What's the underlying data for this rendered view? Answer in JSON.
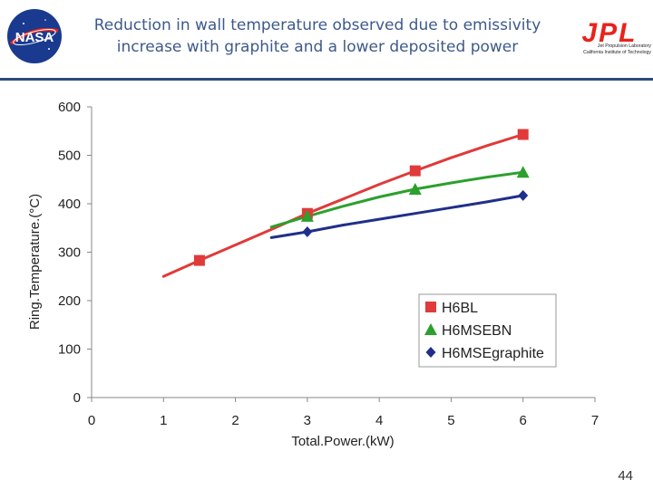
{
  "slide": {
    "title_line1": "Reduction in wall temperature observed due to emissivity",
    "title_line2": "increase with graphite and a lower deposited power",
    "nasa_logo_text": "NASA",
    "jpl_logo_text": "JPL",
    "jpl_line1": "Jet Propulsion Laboratory",
    "jpl_line2": "California Institute of Technology",
    "page_number": "44"
  },
  "colors": {
    "title": "#3d5a8a",
    "rule": "#2e4b7a",
    "jpl_red": "#e8231b",
    "nasa_blue": "#1a3a8f"
  },
  "chart_data": {
    "type": "line",
    "xlabel": "Total.Power.(kW)",
    "ylabel": "Ring.Temperature.(°C)",
    "xlim": [
      0,
      7
    ],
    "ylim": [
      0,
      600
    ],
    "xticks": [
      0,
      1,
      2,
      3,
      4,
      5,
      6,
      7
    ],
    "yticks": [
      0,
      100,
      200,
      300,
      400,
      500,
      600
    ],
    "grid": false,
    "legend_position": "bottom-right",
    "series": [
      {
        "name": "H6BL",
        "color": "#e03a3a",
        "marker": "square",
        "line": [
          [
            1,
            250
          ],
          [
            1.5,
            283
          ],
          [
            2,
            315
          ],
          [
            2.5,
            347
          ],
          [
            3,
            380
          ],
          [
            3.5,
            410
          ],
          [
            4,
            440
          ],
          [
            4.5,
            468
          ],
          [
            5,
            495
          ],
          [
            5.5,
            520
          ],
          [
            6,
            543
          ]
        ],
        "markers": [
          [
            1.5,
            283
          ],
          [
            3,
            380
          ],
          [
            4.5,
            468
          ],
          [
            6,
            543
          ]
        ]
      },
      {
        "name": "H6MSEBN",
        "color": "#2ca02c",
        "marker": "triangle",
        "line": [
          [
            2.5,
            352
          ],
          [
            3,
            374
          ],
          [
            3.5,
            395
          ],
          [
            4,
            414
          ],
          [
            4.5,
            430
          ],
          [
            5,
            443
          ],
          [
            5.5,
            455
          ],
          [
            6,
            465
          ]
        ],
        "markers": [
          [
            3,
            374
          ],
          [
            4.5,
            430
          ],
          [
            6,
            465
          ]
        ]
      },
      {
        "name": "H6MSEgraphite",
        "color": "#1f2f8a",
        "marker": "diamond",
        "line": [
          [
            2.5,
            330
          ],
          [
            3,
            342
          ],
          [
            3.5,
            356
          ],
          [
            4,
            368
          ],
          [
            4.5,
            380
          ],
          [
            5,
            392
          ],
          [
            5.5,
            404
          ],
          [
            6,
            417
          ]
        ],
        "markers": [
          [
            3,
            342
          ],
          [
            6,
            417
          ]
        ]
      }
    ]
  }
}
